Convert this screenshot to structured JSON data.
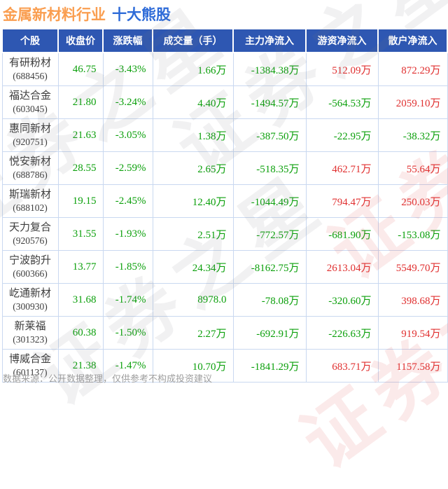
{
  "title": {
    "industry": "金属新材料行业",
    "suffix": "十大熊股"
  },
  "watermark": {
    "text": "证券之星"
  },
  "footer": {
    "text": "数据来源：公开数据整理，仅供参考不构成投资建议"
  },
  "colors": {
    "up": "#e02f2f",
    "down": "#0ca00c",
    "header_bg": "#2e57b2",
    "title_industry": "#fa9e50",
    "title_suffix": "#2e6bd8",
    "grid": "#c9d8f0"
  },
  "chart_data": {
    "type": "table",
    "title": "金属新材料行业 十大熊股",
    "columns": [
      "个股",
      "收盘价",
      "涨跌幅",
      "成交量（手）",
      "主力净流入",
      "游资净流入",
      "散户净流入"
    ],
    "rows": [
      {
        "name": "有研粉材",
        "code": "(688456)",
        "close": "46.75",
        "change": "-3.43%",
        "volume": "1.66万",
        "main": "-1384.38万",
        "hot": "512.09万",
        "retail": "872.29万",
        "hot_dir": "up",
        "retail_dir": "up"
      },
      {
        "name": "福达合金",
        "code": "(603045)",
        "close": "21.80",
        "change": "-3.24%",
        "volume": "4.40万",
        "main": "-1494.57万",
        "hot": "-564.53万",
        "retail": "2059.10万",
        "hot_dir": "down",
        "retail_dir": "up"
      },
      {
        "name": "惠同新材",
        "code": "(920751)",
        "close": "21.63",
        "change": "-3.05%",
        "volume": "1.38万",
        "main": "-387.50万",
        "hot": "-22.95万",
        "retail": "-38.32万",
        "hot_dir": "down",
        "retail_dir": "down"
      },
      {
        "name": "悦安新材",
        "code": "(688786)",
        "close": "28.55",
        "change": "-2.59%",
        "volume": "2.65万",
        "main": "-518.35万",
        "hot": "462.71万",
        "retail": "55.64万",
        "hot_dir": "up",
        "retail_dir": "up"
      },
      {
        "name": "斯瑞新材",
        "code": "(688102)",
        "close": "19.15",
        "change": "-2.45%",
        "volume": "12.40万",
        "main": "-1044.49万",
        "hot": "794.47万",
        "retail": "250.03万",
        "hot_dir": "up",
        "retail_dir": "up"
      },
      {
        "name": "天力复合",
        "code": "(920576)",
        "close": "31.55",
        "change": "-1.93%",
        "volume": "2.51万",
        "main": "-772.57万",
        "hot": "-681.90万",
        "retail": "-153.08万",
        "hot_dir": "down",
        "retail_dir": "down"
      },
      {
        "name": "宁波韵升",
        "code": "(600366)",
        "close": "13.77",
        "change": "-1.85%",
        "volume": "24.34万",
        "main": "-8162.75万",
        "hot": "2613.04万",
        "retail": "5549.70万",
        "hot_dir": "up",
        "retail_dir": "up"
      },
      {
        "name": "屹通新材",
        "code": "(300930)",
        "close": "31.68",
        "change": "-1.74%",
        "volume": "8978.0",
        "main": "-78.08万",
        "hot": "-320.60万",
        "retail": "398.68万",
        "hot_dir": "down",
        "retail_dir": "up"
      },
      {
        "name": "新莱福",
        "code": "(301323)",
        "close": "60.38",
        "change": "-1.50%",
        "volume": "2.27万",
        "main": "-692.91万",
        "hot": "-226.63万",
        "retail": "919.54万",
        "hot_dir": "down",
        "retail_dir": "up"
      },
      {
        "name": "博威合金",
        "code": "(601137)",
        "close": "21.38",
        "change": "-1.47%",
        "volume": "10.70万",
        "main": "-1841.29万",
        "hot": "683.71万",
        "retail": "1157.58万",
        "hot_dir": "up",
        "retail_dir": "up"
      }
    ]
  }
}
